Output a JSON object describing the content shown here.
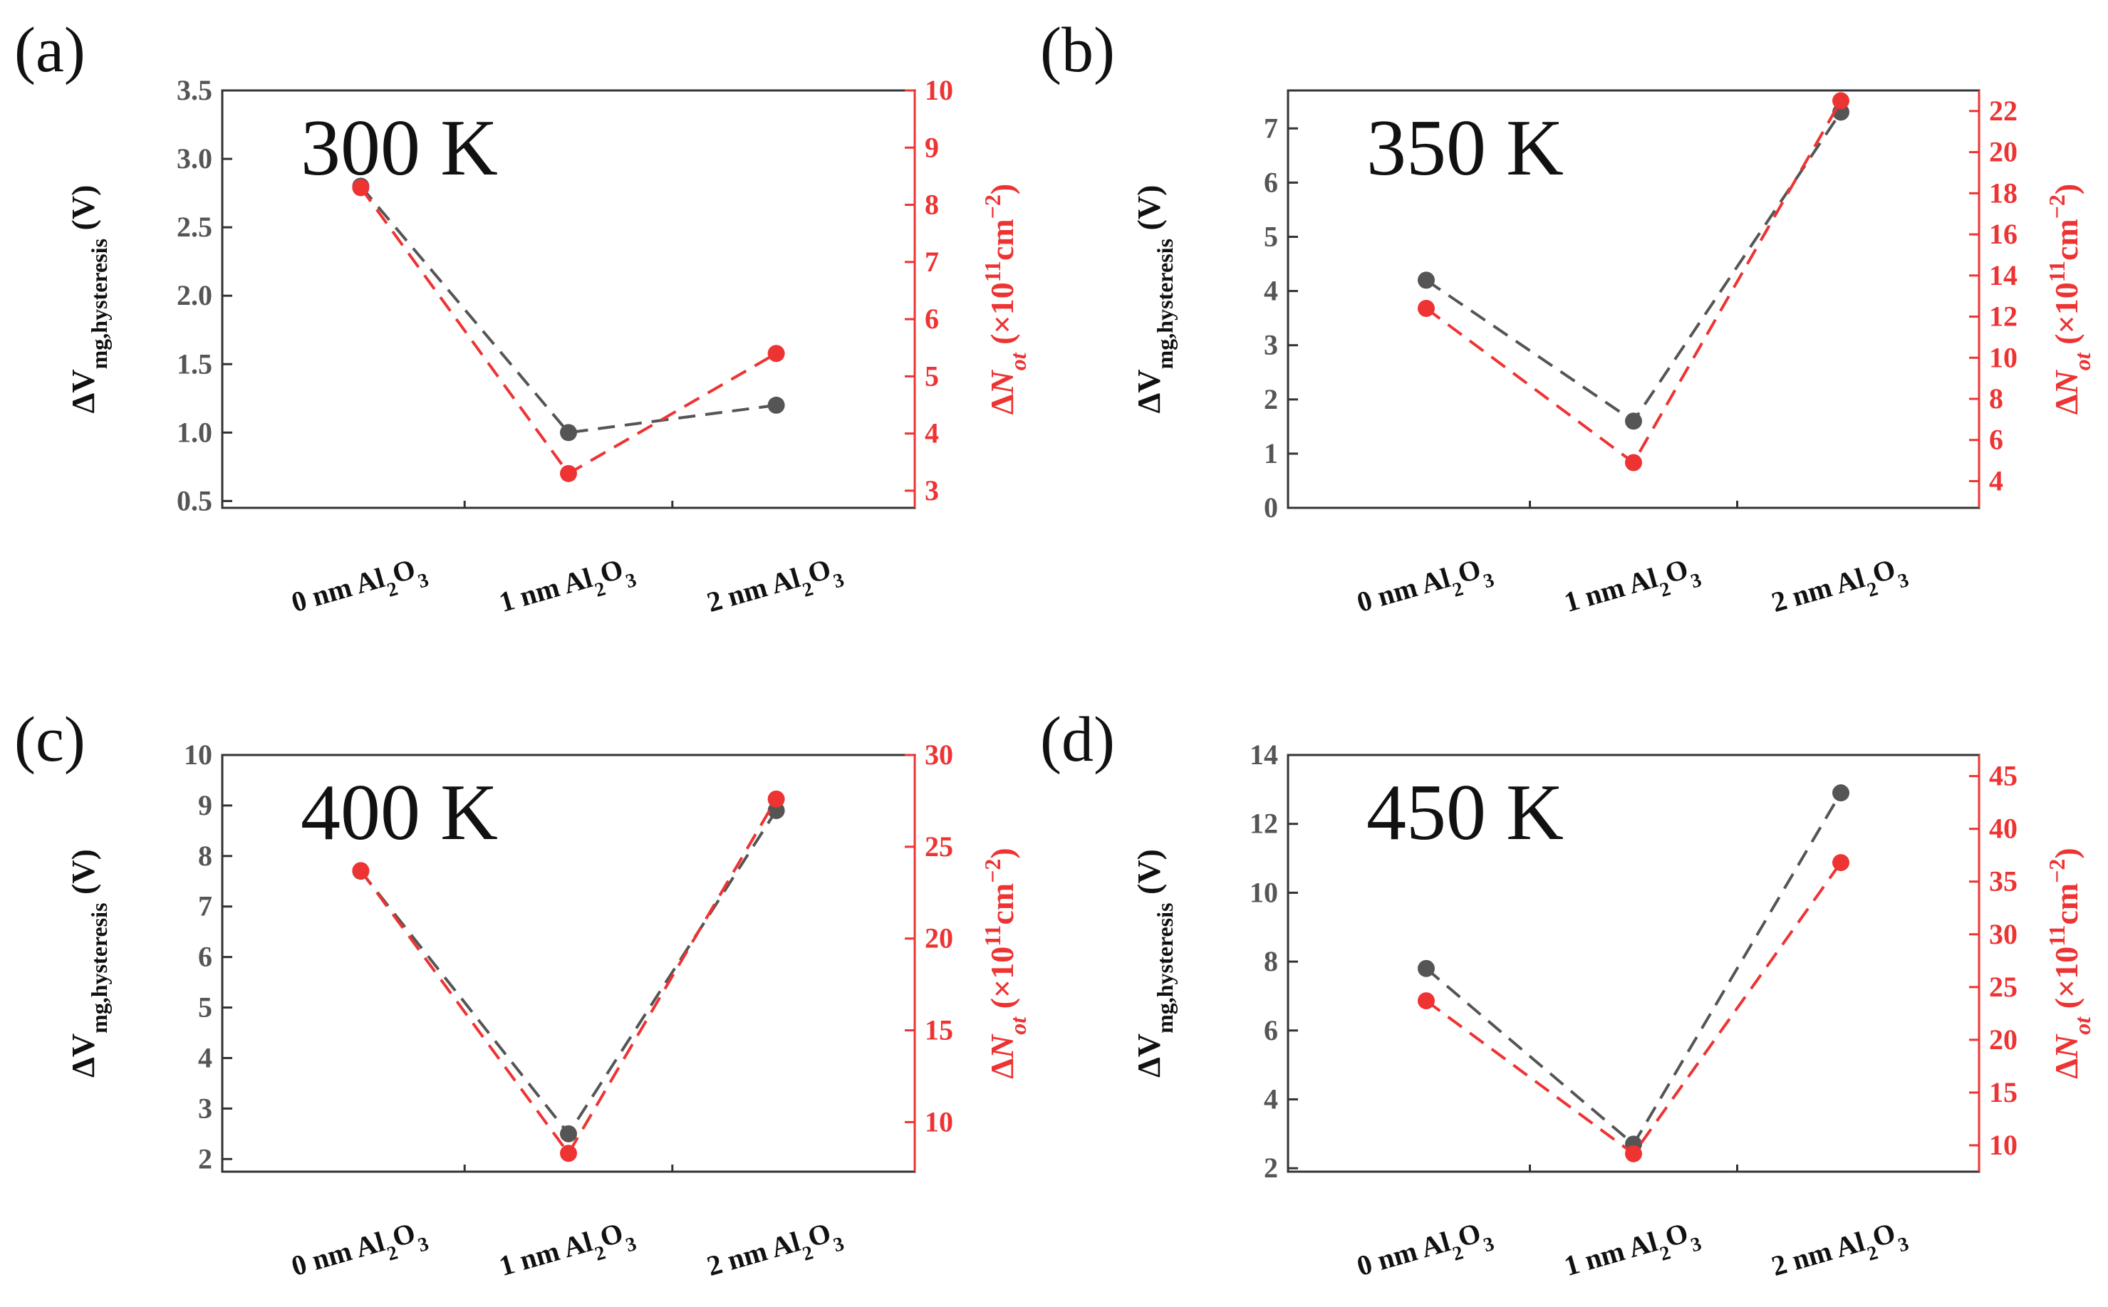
{
  "colors": {
    "left_series": "#555555",
    "right_series": "#ee3333",
    "axis": "#333333"
  },
  "labels": {
    "left_axis": {
      "main": "ΔV",
      "sub": "mg,hysteresis",
      "unit": " (V)"
    },
    "right_axis": {
      "delta": "Δ",
      "N": "N",
      "sub": "ot",
      "open": " (×10",
      "exp": "11",
      "cm": "cm",
      "cm_exp": "−2",
      "close": ")"
    },
    "category": {
      "prefix0": "0 nm Al",
      "prefix1": "1 nm Al",
      "prefix2": "2 nm Al",
      "sub2": "2",
      "O": "O",
      "sub3": "3"
    }
  },
  "chart_data": [
    {
      "panel": "(a)",
      "type": "line",
      "title": "300 K",
      "categories": [
        "0 nm Al2O3",
        "1 nm Al2O3",
        "2 nm Al2O3"
      ],
      "ylabel": "ΔVmg,hysteresis (V)",
      "y2label": "ΔNot (×10^11 cm^-2)",
      "ylim": [
        0.45,
        3.5
      ],
      "y2lim": [
        2.7,
        10
      ],
      "yticks": [
        "0.5",
        "1.0",
        "1.5",
        "2.0",
        "2.5",
        "3.0",
        "3.5"
      ],
      "y2ticks": [
        "3",
        "4",
        "5",
        "6",
        "7",
        "8",
        "9",
        "10"
      ],
      "series": [
        {
          "name": "ΔVmg,hysteresis",
          "axis": "left",
          "values": [
            2.8,
            1.0,
            1.2
          ]
        },
        {
          "name": "ΔNot",
          "axis": "right",
          "values": [
            8.3,
            3.3,
            5.4
          ]
        }
      ]
    },
    {
      "panel": "(b)",
      "type": "line",
      "title": "350 K",
      "categories": [
        "0 nm Al2O3",
        "1 nm Al2O3",
        "2 nm Al2O3"
      ],
      "ylabel": "ΔVmg,hysteresis (V)",
      "y2label": "ΔNot (×10^11 cm^-2)",
      "ylim": [
        0,
        7.7
      ],
      "y2lim": [
        2.7,
        23
      ],
      "yticks": [
        "0",
        "1",
        "2",
        "3",
        "4",
        "5",
        "6",
        "7"
      ],
      "y2ticks": [
        "4",
        "6",
        "8",
        "10",
        "12",
        "14",
        "16",
        "18",
        "20",
        "22"
      ],
      "series": [
        {
          "name": "ΔVmg,hysteresis",
          "axis": "left",
          "values": [
            4.2,
            1.6,
            7.3
          ]
        },
        {
          "name": "ΔNot",
          "axis": "right",
          "values": [
            12.4,
            4.9,
            22.5
          ]
        }
      ]
    },
    {
      "panel": "(c)",
      "type": "line",
      "title": "400 K",
      "categories": [
        "0 nm Al2O3",
        "1 nm Al2O3",
        "2 nm Al2O3"
      ],
      "ylabel": "ΔVmg,hysteresis (V)",
      "y2label": "ΔNot (×10^11 cm^-2)",
      "ylim": [
        1.75,
        10
      ],
      "y2lim": [
        7.3,
        30
      ],
      "yticks": [
        "2",
        "3",
        "4",
        "5",
        "6",
        "7",
        "8",
        "9",
        "10"
      ],
      "y2ticks": [
        "10",
        "15",
        "20",
        "25",
        "30"
      ],
      "series": [
        {
          "name": "ΔVmg,hysteresis",
          "axis": "left",
          "values": [
            7.7,
            2.5,
            8.9
          ]
        },
        {
          "name": "ΔNot",
          "axis": "right",
          "values": [
            23.7,
            8.3,
            27.6
          ]
        }
      ]
    },
    {
      "panel": "(d)",
      "type": "line",
      "title": "450 K",
      "categories": [
        "0 nm Al2O3",
        "1 nm Al2O3",
        "2 nm Al2O3"
      ],
      "ylabel": "ΔVmg,hysteresis (V)",
      "y2label": "ΔNot (×10^11 cm^-2)",
      "ylim": [
        1.9,
        14
      ],
      "y2lim": [
        7.5,
        47
      ],
      "yticks": [
        "2",
        "4",
        "6",
        "8",
        "10",
        "12",
        "14"
      ],
      "y2ticks": [
        "10",
        "15",
        "20",
        "25",
        "30",
        "35",
        "40",
        "45"
      ],
      "series": [
        {
          "name": "ΔVmg,hysteresis",
          "axis": "left",
          "values": [
            7.8,
            2.7,
            12.9
          ]
        },
        {
          "name": "ΔNot",
          "axis": "right",
          "values": [
            23.7,
            9.2,
            36.8
          ]
        }
      ]
    }
  ]
}
